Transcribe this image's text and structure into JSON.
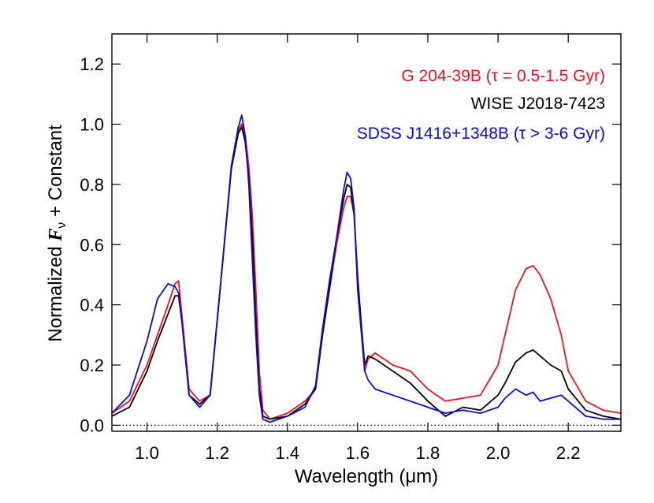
{
  "chart_data": {
    "type": "line",
    "xlabel": "Wavelength (μm)",
    "ylabel_prefix": "Normalized ",
    "ylabel_symbol": "F",
    "ylabel_subscript": "ν",
    "ylabel_suffix": " + Constant",
    "xlim": [
      0.9,
      2.35
    ],
    "ylim": [
      -0.02,
      1.3
    ],
    "xticks": [
      1.0,
      1.2,
      1.4,
      1.6,
      1.8,
      2.0,
      2.2
    ],
    "xtick_labels": [
      "1.0",
      "1.2",
      "1.4",
      "1.6",
      "1.8",
      "2.0",
      "2.2"
    ],
    "yticks": [
      0.0,
      0.2,
      0.4,
      0.6,
      0.8,
      1.0,
      1.2
    ],
    "ytick_labels": [
      "0.0",
      "0.2",
      "0.4",
      "0.6",
      "0.8",
      "1.0",
      "1.2"
    ],
    "zero_line": true,
    "legend_placement": "top-right",
    "series": [
      {
        "name": "G 204-39B (τ = 0.5-1.5 Gyr)",
        "color": "#e8161b",
        "x": [
          0.9,
          0.95,
          1.0,
          1.03,
          1.06,
          1.08,
          1.09,
          1.1,
          1.12,
          1.15,
          1.18,
          1.2,
          1.22,
          1.24,
          1.26,
          1.27,
          1.28,
          1.29,
          1.3,
          1.31,
          1.32,
          1.33,
          1.35,
          1.4,
          1.45,
          1.48,
          1.5,
          1.52,
          1.54,
          1.56,
          1.57,
          1.58,
          1.59,
          1.6,
          1.62,
          1.63,
          1.65,
          1.7,
          1.75,
          1.8,
          1.85,
          1.9,
          1.95,
          2.0,
          2.02,
          2.05,
          2.08,
          2.1,
          2.12,
          2.15,
          2.18,
          2.2,
          2.25,
          2.3,
          2.35
        ],
        "y": [
          0.04,
          0.08,
          0.2,
          0.3,
          0.4,
          0.47,
          0.48,
          0.36,
          0.12,
          0.08,
          0.1,
          0.35,
          0.6,
          0.85,
          0.98,
          1.0,
          0.96,
          0.86,
          0.7,
          0.45,
          0.18,
          0.05,
          0.02,
          0.04,
          0.08,
          0.12,
          0.3,
          0.45,
          0.6,
          0.72,
          0.76,
          0.76,
          0.7,
          0.5,
          0.18,
          0.22,
          0.24,
          0.2,
          0.18,
          0.12,
          0.08,
          0.09,
          0.1,
          0.2,
          0.3,
          0.45,
          0.52,
          0.53,
          0.5,
          0.42,
          0.3,
          0.18,
          0.08,
          0.05,
          0.04
        ]
      },
      {
        "name": "WISE J2018-7423",
        "color": "#000000",
        "x": [
          0.9,
          0.95,
          1.0,
          1.03,
          1.06,
          1.08,
          1.09,
          1.1,
          1.12,
          1.15,
          1.18,
          1.2,
          1.22,
          1.24,
          1.26,
          1.27,
          1.28,
          1.29,
          1.3,
          1.31,
          1.32,
          1.33,
          1.35,
          1.4,
          1.45,
          1.48,
          1.5,
          1.52,
          1.54,
          1.56,
          1.57,
          1.58,
          1.59,
          1.6,
          1.62,
          1.63,
          1.65,
          1.7,
          1.75,
          1.8,
          1.85,
          1.9,
          1.95,
          2.0,
          2.02,
          2.05,
          2.08,
          2.1,
          2.12,
          2.15,
          2.18,
          2.2,
          2.25,
          2.3,
          2.35
        ],
        "y": [
          0.03,
          0.06,
          0.18,
          0.28,
          0.37,
          0.43,
          0.43,
          0.34,
          0.1,
          0.07,
          0.1,
          0.35,
          0.6,
          0.85,
          0.97,
          0.99,
          0.94,
          0.82,
          0.62,
          0.35,
          0.12,
          0.03,
          0.02,
          0.03,
          0.07,
          0.12,
          0.3,
          0.46,
          0.62,
          0.75,
          0.8,
          0.79,
          0.7,
          0.48,
          0.2,
          0.23,
          0.22,
          0.18,
          0.14,
          0.08,
          0.03,
          0.06,
          0.05,
          0.1,
          0.14,
          0.21,
          0.24,
          0.25,
          0.23,
          0.2,
          0.18,
          0.12,
          0.05,
          0.03,
          0.02
        ]
      },
      {
        "name": "SDSS J1416+1348B (τ > 3-6 Gyr)",
        "color": "#0b0bd6",
        "x": [
          0.9,
          0.95,
          1.0,
          1.03,
          1.06,
          1.08,
          1.09,
          1.1,
          1.12,
          1.15,
          1.18,
          1.2,
          1.22,
          1.24,
          1.26,
          1.27,
          1.28,
          1.29,
          1.3,
          1.31,
          1.32,
          1.33,
          1.35,
          1.4,
          1.45,
          1.48,
          1.5,
          1.52,
          1.54,
          1.56,
          1.57,
          1.58,
          1.59,
          1.6,
          1.62,
          1.63,
          1.65,
          1.7,
          1.75,
          1.8,
          1.85,
          1.9,
          1.95,
          2.0,
          2.02,
          2.05,
          2.08,
          2.1,
          2.12,
          2.15,
          2.18,
          2.2,
          2.25,
          2.3,
          2.35
        ],
        "y": [
          0.04,
          0.1,
          0.28,
          0.42,
          0.47,
          0.46,
          0.44,
          0.34,
          0.1,
          0.06,
          0.1,
          0.35,
          0.6,
          0.86,
          0.99,
          1.03,
          0.96,
          0.8,
          0.55,
          0.3,
          0.1,
          0.02,
          0.01,
          0.03,
          0.06,
          0.13,
          0.32,
          0.48,
          0.62,
          0.78,
          0.84,
          0.82,
          0.72,
          0.45,
          0.18,
          0.15,
          0.12,
          0.1,
          0.08,
          0.06,
          0.04,
          0.05,
          0.04,
          0.06,
          0.09,
          0.12,
          0.1,
          0.11,
          0.08,
          0.09,
          0.1,
          0.08,
          0.03,
          0.02,
          0.02
        ]
      }
    ]
  }
}
